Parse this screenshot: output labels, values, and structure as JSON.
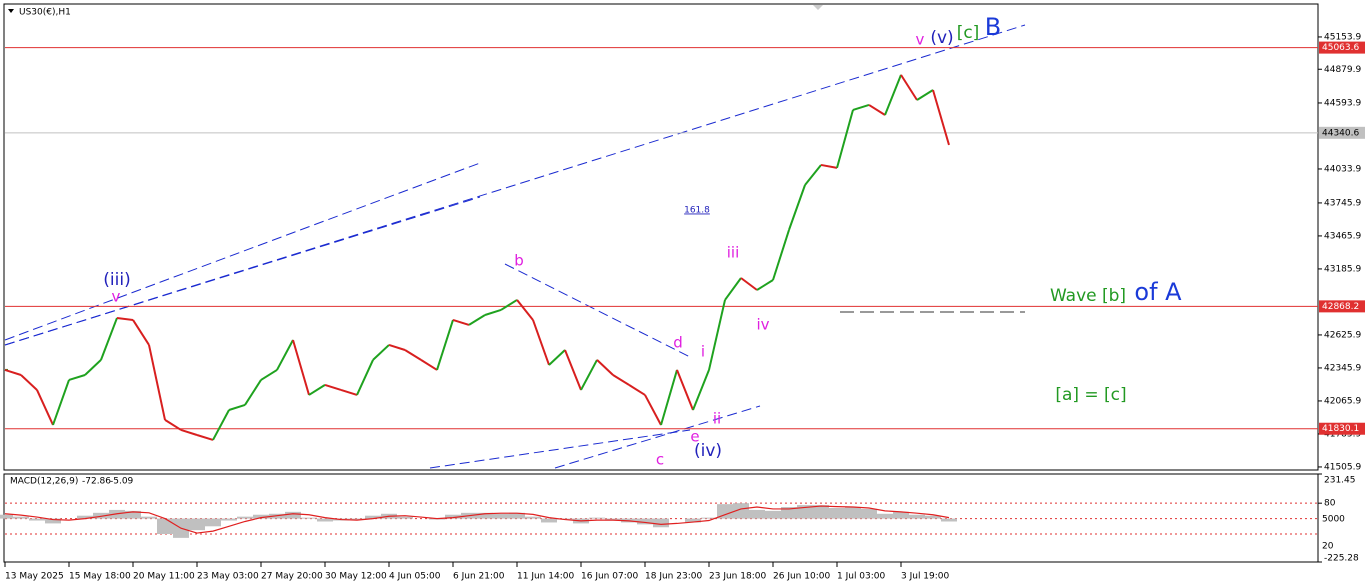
{
  "chart_data": [
    {
      "type": "line",
      "title": "US30(€),H1",
      "categories": [
        "13 May 2025",
        null,
        null,
        null,
        "15 May 18:00",
        null,
        null,
        null,
        "20 May 11:00",
        null,
        null,
        null,
        "23 May 03:00",
        null,
        null,
        null,
        "27 May 20:00",
        null,
        null,
        null,
        "30 May 12:00",
        null,
        null,
        null,
        "4 Jun 05:00",
        null,
        null,
        null,
        "6 Jun 21:00",
        null,
        null,
        null,
        "11 Jun 14:00",
        null,
        null,
        null,
        "16 Jun 07:00",
        null,
        null,
        null,
        "18 Jun 23:00",
        null,
        null,
        null,
        "23 Jun 18:00",
        null,
        null,
        null,
        "26 Jun 10:00",
        null,
        null,
        null,
        "1 Jul 03:00",
        null,
        null,
        null,
        "3 Jul 19:00",
        null,
        null,
        null
      ],
      "values": [
        42329,
        42286,
        42159,
        41862,
        42244,
        42286,
        42414,
        42770,
        42753,
        42541,
        41905,
        41820,
        41777,
        41735,
        41989,
        42032,
        42244,
        42329,
        42583,
        42117,
        42202,
        42159,
        42117,
        42414,
        42541,
        42498,
        42414,
        42329,
        42753,
        42711,
        42795,
        42838,
        42923,
        42753,
        42371,
        42498,
        42159,
        42414,
        42286,
        42202,
        42117,
        41862,
        42329,
        41989,
        42329,
        42923,
        43109,
        43007,
        43092,
        43517,
        43898,
        44068,
        44043,
        44535,
        44577,
        44492,
        44832,
        44619,
        44704,
        44238
      ],
      "up_color": "#1fa21f",
      "down_color": "#d81f1f",
      "ylim": [
        41480,
        45425
      ],
      "yticks": [
        45153.9,
        44879.9,
        44593.9,
        44033.9,
        43745.9,
        43465.9,
        43185.9,
        42625.9,
        42345.9,
        42065.9,
        41785.9,
        41505.9
      ],
      "levels": [
        {
          "value": 45063.6,
          "color": "#e03030"
        },
        {
          "value": 44340.6,
          "color": "#c0c0c0"
        },
        {
          "value": 42868.2,
          "color": "#e03030"
        },
        {
          "value": 41830.1,
          "color": "#e03030"
        }
      ],
      "annotations": [
        {
          "text": "(iii)",
          "color": "#2222bb"
        },
        {
          "text": "v",
          "color": "#e020e0"
        },
        {
          "text": "b",
          "color": "#e020e0"
        },
        {
          "text": "d",
          "color": "#e020e0"
        },
        {
          "text": "i",
          "color": "#e020e0"
        },
        {
          "text": "iii",
          "color": "#e020e0"
        },
        {
          "text": "iv",
          "color": "#e020e0"
        },
        {
          "text": "ii",
          "color": "#e020e0"
        },
        {
          "text": "e",
          "color": "#e020e0"
        },
        {
          "text": "c",
          "color": "#e020e0"
        },
        {
          "text": "(iv)",
          "color": "#2222bb"
        },
        {
          "text": "161.8",
          "color": "#2222bb"
        },
        {
          "text": "v",
          "color": "#e020e0"
        },
        {
          "text": "(v)",
          "color": "#2222bb"
        },
        {
          "text": "[c]",
          "color": "#229922"
        },
        {
          "text": "B",
          "color": "#1a3ad8"
        },
        {
          "text": "Wave [b]",
          "color": "#229922"
        },
        {
          "text": "of A",
          "color": "#1a3ad8"
        },
        {
          "text": "[a] = [c]",
          "color": "#229922"
        }
      ]
    },
    {
      "type": "macd",
      "title": "MACD(12,26,9)",
      "main": -72.86,
      "signal_value": -5.09,
      "values": [
        20,
        10,
        -10,
        -25,
        0,
        15,
        30,
        45,
        40,
        10,
        -80,
        -100,
        -60,
        -40,
        -10,
        10,
        20,
        25,
        35,
        5,
        -15,
        -10,
        -5,
        15,
        25,
        10,
        0,
        -5,
        20,
        30,
        30,
        25,
        30,
        10,
        -20,
        -5,
        -25,
        5,
        -10,
        -20,
        -30,
        -45,
        0,
        -20,
        5,
        75,
        80,
        45,
        40,
        60,
        70,
        70,
        55,
        60,
        50,
        25,
        35,
        20,
        15,
        -15
      ],
      "signal": [
        25,
        18,
        8,
        -5,
        -8,
        0,
        12,
        25,
        35,
        30,
        0,
        -50,
        -75,
        -65,
        -40,
        -15,
        5,
        15,
        25,
        20,
        5,
        -5,
        -8,
        0,
        12,
        15,
        8,
        0,
        5,
        15,
        25,
        28,
        28,
        22,
        5,
        -5,
        -12,
        -8,
        -8,
        -12,
        -20,
        -30,
        -25,
        -18,
        -10,
        20,
        50,
        60,
        50,
        50,
        58,
        65,
        62,
        60,
        55,
        40,
        35,
        28,
        20,
        5
      ],
      "color": "#c0c0c0",
      "signal_color": "#e02020",
      "ylim": [
        -225.28,
        231.45
      ],
      "yticks": [
        231.45,
        80,
        -225.28
      ],
      "levels": [
        80,
        0,
        -80
      ],
      "axis_texts": [
        "5000",
        "20"
      ]
    }
  ]
}
